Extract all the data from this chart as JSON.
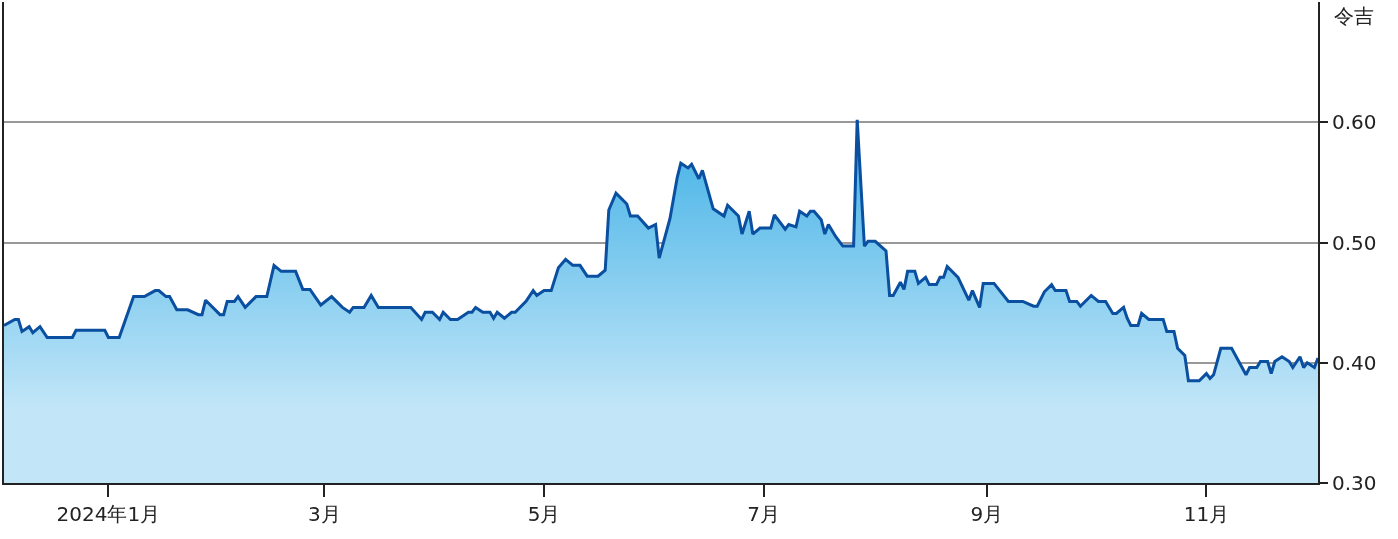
{
  "chart_data": {
    "type": "area",
    "ylabel": "令吉",
    "xlim": [
      "2023-12-03",
      "2024-12-02"
    ],
    "ylim": [
      0.3,
      0.7
    ],
    "yticks": [
      {
        "value": 0.3,
        "label": "0.30"
      },
      {
        "value": 0.4,
        "label": "0.40"
      },
      {
        "value": 0.5,
        "label": "0.50"
      },
      {
        "value": 0.6,
        "label": "0.60"
      }
    ],
    "xticks": [
      {
        "value": "2024-01-01",
        "label": "2024年1月"
      },
      {
        "value": "2024-03-01",
        "label": "3月"
      },
      {
        "value": "2024-05-01",
        "label": "5月"
      },
      {
        "value": "2024-07-01",
        "label": "7月"
      },
      {
        "value": "2024-09-01",
        "label": "9月"
      },
      {
        "value": "2024-11-01",
        "label": "11月"
      }
    ],
    "grid": "y",
    "x": [
      "2023-12-03",
      "2023-12-06",
      "2023-12-07",
      "2023-12-08",
      "2023-12-10",
      "2023-12-11",
      "2023-12-13",
      "2023-12-15",
      "2023-12-22",
      "2023-12-23",
      "2023-12-31",
      "2024-01-01",
      "2024-01-04",
      "2024-01-08",
      "2024-01-11",
      "2024-01-14",
      "2024-01-15",
      "2024-01-17",
      "2024-01-18",
      "2024-01-20",
      "2024-01-23",
      "2024-01-26",
      "2024-01-27",
      "2024-01-28",
      "2024-02-01",
      "2024-02-02",
      "2024-02-03",
      "2024-02-05",
      "2024-02-06",
      "2024-02-08",
      "2024-02-11",
      "2024-02-14",
      "2024-02-16",
      "2024-02-18",
      "2024-02-22",
      "2024-02-24",
      "2024-02-26",
      "2024-02-29",
      "2024-03-03",
      "2024-03-06",
      "2024-03-08",
      "2024-03-09",
      "2024-03-12",
      "2024-03-14",
      "2024-03-16",
      "2024-03-25",
      "2024-03-28",
      "2024-03-29",
      "2024-03-31",
      "2024-04-02",
      "2024-04-03",
      "2024-04-05",
      "2024-04-07",
      "2024-04-10",
      "2024-04-11",
      "2024-04-12",
      "2024-04-14",
      "2024-04-16",
      "2024-04-17",
      "2024-04-18",
      "2024-04-20",
      "2024-04-22",
      "2024-04-23",
      "2024-04-26",
      "2024-04-28",
      "2024-04-29",
      "2024-05-01",
      "2024-05-03",
      "2024-05-05",
      "2024-05-07",
      "2024-05-09",
      "2024-05-11",
      "2024-05-13",
      "2024-05-16",
      "2024-05-18",
      "2024-05-19",
      "2024-05-21",
      "2024-05-24",
      "2024-05-25",
      "2024-05-27",
      "2024-05-30",
      "2024-06-01",
      "2024-06-02",
      "2024-06-05",
      "2024-06-07",
      "2024-06-08",
      "2024-06-10",
      "2024-06-11",
      "2024-06-13",
      "2024-06-14",
      "2024-06-17",
      "2024-06-20",
      "2024-06-21",
      "2024-06-24",
      "2024-06-25",
      "2024-06-27",
      "2024-06-28",
      "2024-06-30",
      "2024-07-03",
      "2024-07-04",
      "2024-07-07",
      "2024-07-08",
      "2024-07-10",
      "2024-07-11",
      "2024-07-13",
      "2024-07-14",
      "2024-07-15",
      "2024-07-17",
      "2024-07-18",
      "2024-07-19",
      "2024-07-21",
      "2024-07-23",
      "2024-07-26",
      "2024-07-27",
      "2024-07-29",
      "2024-07-30",
      "2024-08-01",
      "2024-08-04",
      "2024-08-05",
      "2024-08-06",
      "2024-08-08",
      "2024-08-09",
      "2024-08-10",
      "2024-08-12",
      "2024-08-13",
      "2024-08-15",
      "2024-08-16",
      "2024-08-18",
      "2024-08-19",
      "2024-08-20",
      "2024-08-21",
      "2024-08-24",
      "2024-08-27",
      "2024-08-28",
      "2024-08-30",
      "2024-08-31",
      "2024-09-03",
      "2024-09-07",
      "2024-09-11",
      "2024-09-14",
      "2024-09-15",
      "2024-09-17",
      "2024-09-19",
      "2024-09-20",
      "2024-09-23",
      "2024-09-24",
      "2024-09-26",
      "2024-09-27",
      "2024-09-30",
      "2024-10-02",
      "2024-10-04",
      "2024-10-06",
      "2024-10-07",
      "2024-10-09",
      "2024-10-10",
      "2024-10-11",
      "2024-10-13",
      "2024-10-14",
      "2024-10-16",
      "2024-10-20",
      "2024-10-21",
      "2024-10-23",
      "2024-10-24",
      "2024-10-26",
      "2024-10-27",
      "2024-10-30",
      "2024-11-01",
      "2024-11-02",
      "2024-11-03",
      "2024-11-05",
      "2024-11-08",
      "2024-11-10",
      "2024-11-12",
      "2024-11-13",
      "2024-11-15",
      "2024-11-16",
      "2024-11-18",
      "2024-11-19",
      "2024-11-20",
      "2024-11-22",
      "2024-11-24",
      "2024-11-25",
      "2024-11-27",
      "2024-11-28",
      "2024-11-29",
      "2024-12-01",
      "2024-12-02"
    ],
    "series": [
      {
        "color": "#0a4fa0",
        "values": [
          0.431,
          0.436,
          0.436,
          0.426,
          0.43,
          0.425,
          0.43,
          0.421,
          0.421,
          0.427,
          0.427,
          0.421,
          0.421,
          0.455,
          0.455,
          0.46,
          0.46,
          0.455,
          0.455,
          0.444,
          0.444,
          0.44,
          0.44,
          0.452,
          0.44,
          0.44,
          0.451,
          0.451,
          0.455,
          0.446,
          0.455,
          0.455,
          0.481,
          0.476,
          0.476,
          0.461,
          0.461,
          0.448,
          0.455,
          0.446,
          0.442,
          0.446,
          0.446,
          0.456,
          0.446,
          0.446,
          0.436,
          0.442,
          0.442,
          0.436,
          0.442,
          0.436,
          0.436,
          0.442,
          0.442,
          0.446,
          0.442,
          0.442,
          0.437,
          0.442,
          0.437,
          0.442,
          0.442,
          0.451,
          0.46,
          0.456,
          0.46,
          0.46,
          0.479,
          0.486,
          0.481,
          0.481,
          0.472,
          0.472,
          0.477,
          0.527,
          0.541,
          0.532,
          0.522,
          0.522,
          0.512,
          0.515,
          0.487,
          0.52,
          0.554,
          0.566,
          0.562,
          0.565,
          0.553,
          0.56,
          0.528,
          0.522,
          0.531,
          0.522,
          0.507,
          0.526,
          0.507,
          0.512,
          0.512,
          0.523,
          0.511,
          0.515,
          0.513,
          0.526,
          0.522,
          0.526,
          0.526,
          0.519,
          0.507,
          0.515,
          0.505,
          0.497,
          0.497,
          0.602,
          0.497,
          0.501,
          0.501,
          0.493,
          0.456,
          0.456,
          0.467,
          0.461,
          0.476,
          0.476,
          0.466,
          0.471,
          0.465,
          0.465,
          0.471,
          0.471,
          0.48,
          0.471,
          0.452,
          0.46,
          0.446,
          0.466,
          0.466,
          0.451,
          0.451,
          0.447,
          0.447,
          0.459,
          0.465,
          0.46,
          0.46,
          0.451,
          0.451,
          0.447,
          0.456,
          0.451,
          0.451,
          0.441,
          0.441,
          0.446,
          0.437,
          0.431,
          0.431,
          0.441,
          0.436,
          0.436,
          0.426,
          0.426,
          0.412,
          0.406,
          0.385,
          0.385,
          0.391,
          0.387,
          0.39,
          0.412,
          0.412,
          0.401,
          0.39,
          0.396,
          0.396,
          0.401,
          0.401,
          0.391,
          0.401,
          0.405,
          0.401,
          0.396,
          0.405,
          0.396,
          0.4,
          0.396,
          0.404
        ]
      }
    ]
  }
}
